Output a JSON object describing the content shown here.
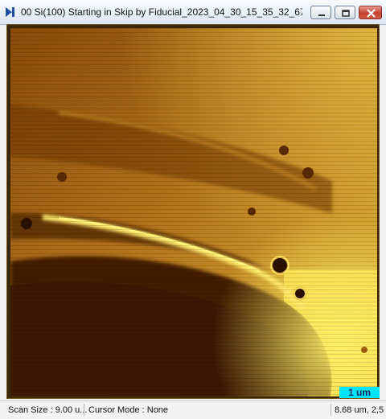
{
  "window": {
    "title": "00 Si(100) Starting in Skip by Fiducial_2023_04_30_15_35_32_675/0 Top...",
    "icons": {
      "app": "afm-channel-icon",
      "minimize": "minimize-icon",
      "maximize": "maximize-icon",
      "close": "close-icon"
    }
  },
  "image": {
    "colormap": [
      "#3a1a04",
      "#7a3d08",
      "#b87a14",
      "#ffee55"
    ],
    "scale_bar_label": "1 um"
  },
  "status": {
    "scan_size": "Scan Size : 9.00 u...",
    "cursor_mode": "Cursor Mode : None",
    "coordinates": "8.68 um, 2,5"
  }
}
